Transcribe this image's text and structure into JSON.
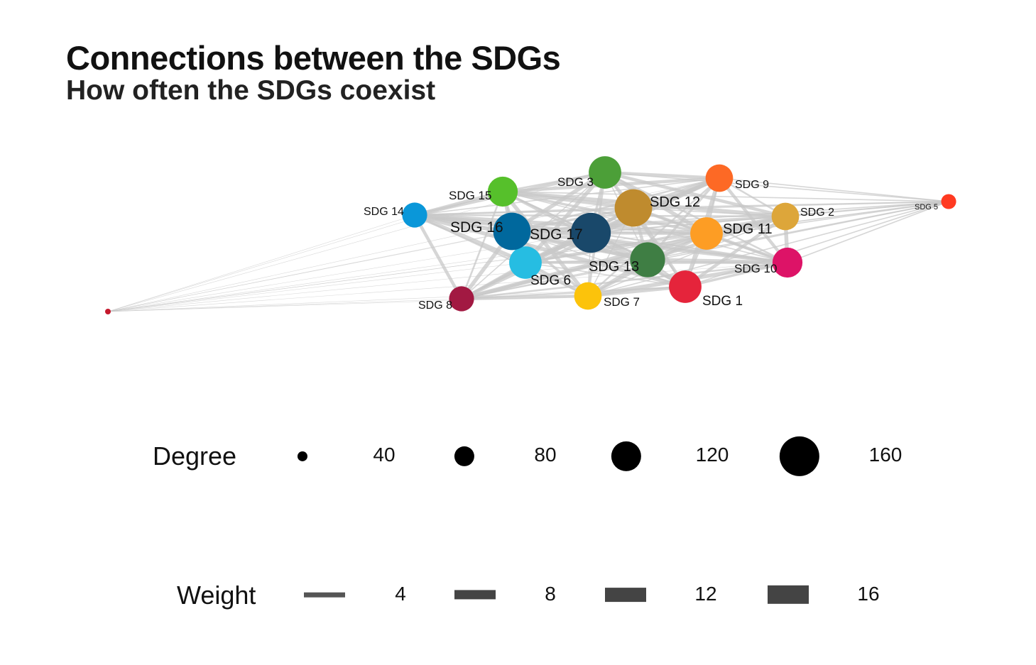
{
  "title": "Connections between the SDGs",
  "subtitle": "How often the SDGs coexist",
  "nodes": [
    {
      "id": "SDG 1",
      "label": "SDG 1",
      "color": "#E5243B",
      "degree": 130
    },
    {
      "id": "SDG 2",
      "label": "SDG 2",
      "color": "#DDA63A",
      "degree": 110
    },
    {
      "id": "SDG 3",
      "label": "SDG 3",
      "color": "#4C9F38",
      "degree": 130
    },
    {
      "id": "SDG 4",
      "label": "",
      "color": "#C5192D",
      "degree": 10
    },
    {
      "id": "SDG 5",
      "label": "SDG 5",
      "color": "#FF3A21",
      "degree": 60
    },
    {
      "id": "SDG 6",
      "label": "SDG 6",
      "color": "#26BDE2",
      "degree": 130
    },
    {
      "id": "SDG 7",
      "label": "SDG 7",
      "color": "#FCC30B",
      "degree": 110
    },
    {
      "id": "SDG 8",
      "label": "SDG 8",
      "color": "#A21942",
      "degree": 100
    },
    {
      "id": "SDG 9",
      "label": "SDG 9",
      "color": "#FD6925",
      "degree": 110
    },
    {
      "id": "SDG 10",
      "label": "SDG 10",
      "color": "#DD1367",
      "degree": 120
    },
    {
      "id": "SDG 11",
      "label": "SDG 11",
      "color": "#FD9D24",
      "degree": 130
    },
    {
      "id": "SDG 12",
      "label": "SDG 12",
      "color": "#BF8B2E",
      "degree": 150
    },
    {
      "id": "SDG 13",
      "label": "SDG 13",
      "color": "#3F7E44",
      "degree": 140
    },
    {
      "id": "SDG 14",
      "label": "SDG 14",
      "color": "#0A97D9",
      "degree": 100
    },
    {
      "id": "SDG 15",
      "label": "SDG 15",
      "color": "#56C02B",
      "degree": 120
    },
    {
      "id": "SDG 16",
      "label": "SDG 16",
      "color": "#00689D",
      "degree": 150
    },
    {
      "id": "SDG 17",
      "label": "SDG 17",
      "color": "#19486A",
      "degree": 160
    }
  ],
  "legend": {
    "degree": {
      "title": "Degree",
      "items": [
        40,
        80,
        120,
        160
      ]
    },
    "weight": {
      "title": "Weight",
      "items": [
        4,
        8,
        12,
        16
      ]
    }
  },
  "colors": {
    "edge": "#c8c8c8",
    "legend_fill": "#000000",
    "weight_fill": "#444444"
  }
}
